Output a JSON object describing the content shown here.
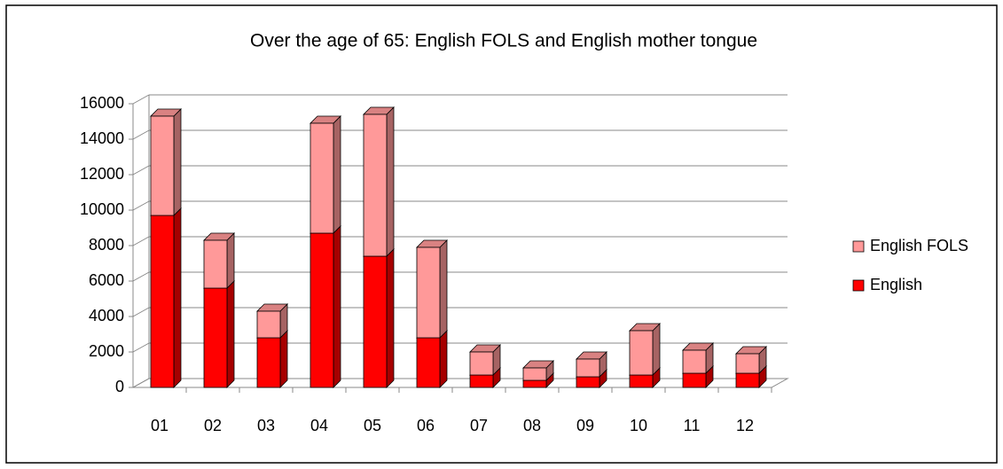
{
  "chart_data": {
    "type": "bar",
    "stacked": true,
    "title": "Over the age of 65: English FOLS and English mother tongue",
    "categories": [
      "01",
      "02",
      "03",
      "04",
      "05",
      "06",
      "07",
      "08",
      "09",
      "10",
      "11",
      "12"
    ],
    "series": [
      {
        "name": "English",
        "color": "#ff0000",
        "values": [
          9700,
          5600,
          2800,
          8700,
          7400,
          2800,
          700,
          400,
          600,
          700,
          800,
          800
        ]
      },
      {
        "name": "English FOLS",
        "color": "#ff9999",
        "values": [
          5600,
          2700,
          1500,
          6200,
          8000,
          5100,
          1300,
          700,
          1000,
          2500,
          1300,
          1100
        ]
      }
    ],
    "ylim": [
      0,
      16000
    ],
    "yticks": [
      0,
      2000,
      4000,
      6000,
      8000,
      10000,
      12000,
      14000,
      16000
    ],
    "grid": true,
    "legend": "right"
  }
}
